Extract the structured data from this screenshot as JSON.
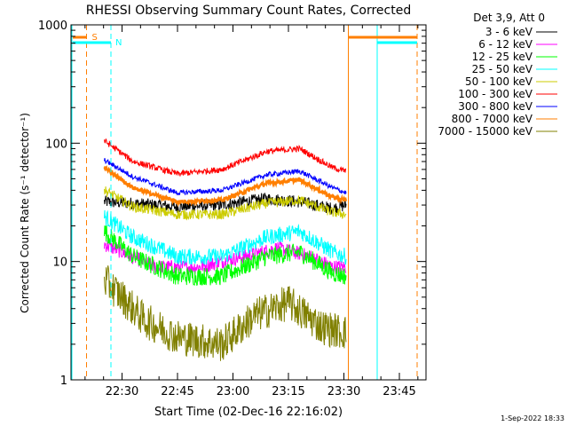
{
  "chart_data": {
    "type": "line",
    "title": "RHESSI Observing Summary Count Rates, Corrected",
    "xlabel": "Start Time (02-Dec-16 22:16:02)",
    "ylabel": "Corrected Count Rate (s⁻¹ detector⁻¹)",
    "yscale": "log",
    "ylim": [
      1,
      1000
    ],
    "xlim_minutes": [
      22.27,
      23.87
    ],
    "x_ticks": [
      "22:30",
      "22:45",
      "23:00",
      "23:15",
      "23:30",
      "23:45"
    ],
    "x_tick_values_hours": [
      22.5,
      22.75,
      23.0,
      23.25,
      23.5,
      23.75
    ],
    "y_ticks": [
      "1",
      "10",
      "100",
      "1000"
    ],
    "y_tick_values": [
      1,
      10,
      100,
      1000
    ],
    "grid": false,
    "legend_title": "Det 3,9, Att 0",
    "legend_position": "right",
    "markers": [
      {
        "label": "S",
        "color": "#ff7f00"
      },
      {
        "label": "N",
        "color": "#00ffff"
      }
    ],
    "series": [
      {
        "name": "3 - 6 keV",
        "color": "#000000",
        "x_hours": [
          22.42,
          22.55,
          22.75,
          22.95,
          23.15,
          23.3,
          23.45,
          23.51
        ],
        "values": [
          32,
          31,
          29,
          30,
          34,
          32,
          28,
          30
        ]
      },
      {
        "name": "6 - 12 keV",
        "color": "#ff00ff",
        "x_hours": [
          22.42,
          22.5,
          22.65,
          22.85,
          23.05,
          23.2,
          23.35,
          23.45,
          23.51
        ],
        "values": [
          14,
          12,
          9,
          9,
          11,
          13,
          11,
          9,
          9
        ]
      },
      {
        "name": "12 - 25 keV",
        "color": "#00ff00",
        "x_hours": [
          22.42,
          22.55,
          22.75,
          22.95,
          23.15,
          23.3,
          23.45,
          23.51
        ],
        "values": [
          18,
          11,
          7.5,
          7.5,
          11,
          12,
          8,
          7.5
        ]
      },
      {
        "name": "25 - 50 keV",
        "color": "#00ffff",
        "x_hours": [
          22.42,
          22.55,
          22.75,
          22.95,
          23.15,
          23.3,
          23.45,
          23.51
        ],
        "values": [
          24,
          16,
          11,
          11,
          16,
          18,
          12,
          11
        ]
      },
      {
        "name": "50 - 100 keV",
        "color": "#cccc00",
        "x_hours": [
          22.42,
          22.55,
          22.75,
          22.95,
          23.15,
          23.3,
          23.45,
          23.51
        ],
        "values": [
          40,
          29,
          25,
          25,
          31,
          33,
          26,
          25
        ]
      },
      {
        "name": "100 - 300 keV",
        "color": "#ff0000",
        "x_hours": [
          22.42,
          22.55,
          22.75,
          22.95,
          23.15,
          23.3,
          23.45,
          23.51
        ],
        "values": [
          105,
          70,
          55,
          60,
          85,
          90,
          62,
          58
        ]
      },
      {
        "name": "300 - 800 keV",
        "color": "#0000ff",
        "x_hours": [
          22.42,
          22.55,
          22.75,
          22.95,
          23.15,
          23.3,
          23.45,
          23.51
        ],
        "values": [
          72,
          52,
          38,
          40,
          54,
          58,
          42,
          38
        ]
      },
      {
        "name": "800 - 7000 keV",
        "color": "#ff7f00",
        "x_hours": [
          22.42,
          22.55,
          22.75,
          22.95,
          23.15,
          23.3,
          23.45,
          23.51
        ],
        "values": [
          62,
          42,
          32,
          33,
          46,
          49,
          35,
          33
        ]
      },
      {
        "name": "7000 - 15000 keV",
        "color": "#808000",
        "x_hours": [
          22.42,
          22.5,
          22.6,
          22.75,
          22.95,
          23.1,
          23.25,
          23.4,
          23.51
        ],
        "values": [
          7,
          5,
          3.2,
          2.3,
          2.0,
          3.5,
          4.5,
          2.8,
          2.5
        ]
      }
    ]
  },
  "footer": {
    "date_stamp": "1-Sep-2022 18:33"
  }
}
